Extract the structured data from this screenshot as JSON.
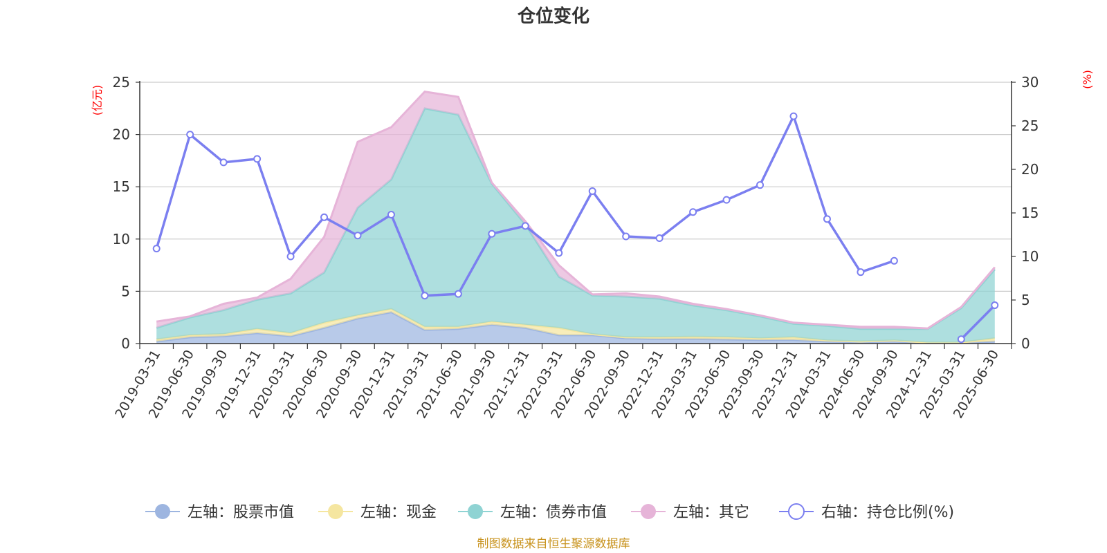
{
  "chart_data": {
    "type": "area",
    "title": "仓位变化",
    "y_left_unit": "(亿元)",
    "y_right_unit": "(%)",
    "ylim_left": [
      0,
      25
    ],
    "ylim_right": [
      0,
      30
    ],
    "y_left_ticks": [
      "0",
      "5",
      "10",
      "15",
      "20",
      "25"
    ],
    "y_right_ticks": [
      "0",
      "5",
      "10",
      "15",
      "20",
      "25",
      "30"
    ],
    "grid": true,
    "legend_position": "bottom",
    "categories": [
      "2019-03-31",
      "2019-06-30",
      "2019-09-30",
      "2019-12-31",
      "2020-03-31",
      "2020-06-30",
      "2020-09-30",
      "2020-12-31",
      "2021-03-31",
      "2021-06-30",
      "2021-09-30",
      "2021-12-31",
      "2022-03-31",
      "2022-06-30",
      "2022-09-30",
      "2022-12-31",
      "2023-03-31",
      "2023-06-30",
      "2023-09-30",
      "2023-12-31",
      "2024-03-31",
      "2024-06-30",
      "2024-09-30",
      "2024-12-31",
      "2025-03-31",
      "2025-06-30"
    ],
    "series": [
      {
        "name": "左轴：股票市值",
        "axis": "left",
        "color": "#9db5e0",
        "values": [
          0.2,
          0.6,
          0.7,
          1.0,
          0.7,
          1.5,
          2.4,
          3.0,
          1.3,
          1.4,
          1.8,
          1.5,
          0.8,
          0.8,
          0.5,
          0.45,
          0.45,
          0.4,
          0.35,
          0.35,
          0.2,
          0.15,
          0.2,
          0.05,
          0.05,
          0.2
        ]
      },
      {
        "name": "左轴：现金",
        "axis": "left",
        "color": "#f5e6a0",
        "values": [
          0.2,
          0.2,
          0.2,
          0.4,
          0.3,
          0.5,
          0.3,
          0.3,
          0.3,
          0.2,
          0.3,
          0.3,
          0.7,
          0.1,
          0.1,
          0.15,
          0.2,
          0.2,
          0.15,
          0.25,
          0.1,
          0.05,
          0.1,
          0.05,
          0.05,
          0.3
        ]
      },
      {
        "name": "左轴：债券市值",
        "axis": "left",
        "color": "#8fd3d3",
        "values": [
          1.1,
          1.7,
          2.3,
          2.8,
          3.8,
          4.8,
          10.3,
          12.4,
          20.9,
          20.3,
          13.2,
          9.6,
          4.9,
          3.7,
          3.9,
          3.7,
          3.0,
          2.6,
          2.1,
          1.3,
          1.4,
          1.2,
          1.1,
          1.3,
          3.3,
          6.6
        ]
      },
      {
        "name": "左轴：其它",
        "axis": "left",
        "color": "#e6b4d8",
        "values": [
          0.6,
          0.1,
          0.6,
          0.2,
          1.4,
          3.4,
          6.3,
          5.0,
          1.6,
          1.7,
          0.1,
          0.3,
          1.1,
          0.1,
          0.3,
          0.2,
          0.15,
          0.1,
          0.1,
          0.1,
          0.1,
          0.2,
          0.2,
          0.05,
          0.1,
          0.2
        ]
      },
      {
        "name": "右轴：持仓比例(%)",
        "axis": "right",
        "color": "#7b7ff0",
        "values": [
          10.9,
          24.0,
          20.8,
          21.2,
          10.0,
          14.5,
          12.4,
          14.8,
          5.5,
          5.7,
          12.6,
          13.5,
          10.4,
          17.5,
          12.3,
          12.1,
          15.1,
          16.5,
          18.2,
          26.1,
          14.3,
          8.2,
          9.5,
          null,
          0.5,
          4.4
        ]
      }
    ]
  },
  "footer": {
    "source": "制图数据来自恒生聚源数据库"
  }
}
